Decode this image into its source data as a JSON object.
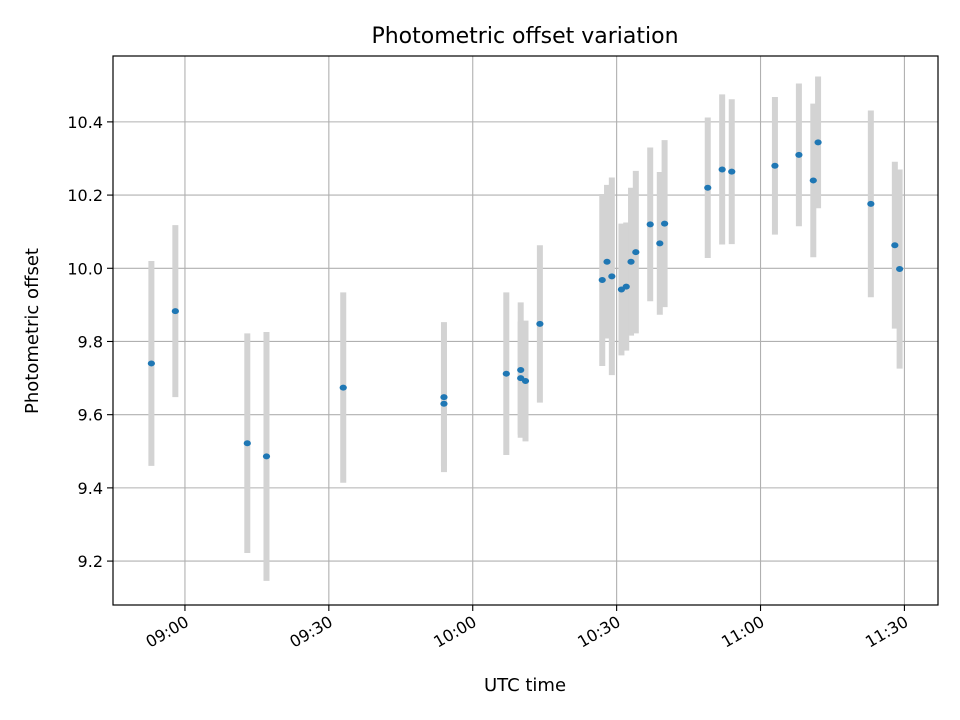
{
  "chart_data": {
    "type": "scatter",
    "title": "Photometric offset variation",
    "xlabel": "UTC time",
    "ylabel": "Photometric offset",
    "grid": true,
    "legend": "none",
    "xlim": [
      "08:45",
      "11:37"
    ],
    "ylim": [
      9.08,
      10.58
    ],
    "x_ticks": [
      "09:00",
      "09:30",
      "10:00",
      "10:30",
      "11:00",
      "11:30"
    ],
    "y_ticks": [
      "9.2",
      "9.4",
      "9.6",
      "9.8",
      "10.0",
      "10.2",
      "10.4"
    ],
    "colors": {
      "point": "#1f77b4",
      "errorbar": "#d3d3d3",
      "grid": "#b0b0b0"
    },
    "points": [
      {
        "t": "08:53",
        "y": 9.74,
        "err": 0.28
      },
      {
        "t": "08:58",
        "y": 9.883,
        "err": 0.235
      },
      {
        "t": "09:13",
        "y": 9.522,
        "err": 0.3
      },
      {
        "t": "09:17",
        "y": 9.486,
        "err": 0.34
      },
      {
        "t": "09:33",
        "y": 9.674,
        "err": 0.26
      },
      {
        "t": "09:54",
        "y": 9.63,
        "err": 0.17
      },
      {
        "t": "09:54",
        "y": 9.648,
        "err": 0.205
      },
      {
        "t": "10:07",
        "y": 9.712,
        "err": 0.222
      },
      {
        "t": "10:10",
        "y": 9.722,
        "err": 0.185
      },
      {
        "t": "10:10",
        "y": 9.7,
        "err": 0.155
      },
      {
        "t": "10:11",
        "y": 9.692,
        "err": 0.165
      },
      {
        "t": "10:14",
        "y": 9.848,
        "err": 0.215
      },
      {
        "t": "10:27",
        "y": 9.968,
        "err": 0.235
      },
      {
        "t": "10:28",
        "y": 10.018,
        "err": 0.21
      },
      {
        "t": "10:29",
        "y": 9.978,
        "err": 0.27
      },
      {
        "t": "10:31",
        "y": 9.942,
        "err": 0.18
      },
      {
        "t": "10:32",
        "y": 9.95,
        "err": 0.175
      },
      {
        "t": "10:33",
        "y": 10.018,
        "err": 0.202
      },
      {
        "t": "10:34",
        "y": 10.044,
        "err": 0.222
      },
      {
        "t": "10:37",
        "y": 10.12,
        "err": 0.21
      },
      {
        "t": "10:39",
        "y": 10.068,
        "err": 0.195
      },
      {
        "t": "10:40",
        "y": 10.122,
        "err": 0.228
      },
      {
        "t": "10:49",
        "y": 10.22,
        "err": 0.192
      },
      {
        "t": "10:52",
        "y": 10.27,
        "err": 0.205
      },
      {
        "t": "10:54",
        "y": 10.264,
        "err": 0.198
      },
      {
        "t": "11:03",
        "y": 10.28,
        "err": 0.188
      },
      {
        "t": "11:08",
        "y": 10.31,
        "err": 0.195
      },
      {
        "t": "11:11",
        "y": 10.24,
        "err": 0.21
      },
      {
        "t": "11:12",
        "y": 10.344,
        "err": 0.18
      },
      {
        "t": "11:23",
        "y": 10.176,
        "err": 0.255
      },
      {
        "t": "11:28",
        "y": 10.063,
        "err": 0.228
      },
      {
        "t": "11:29",
        "y": 9.998,
        "err": 0.272
      }
    ]
  }
}
